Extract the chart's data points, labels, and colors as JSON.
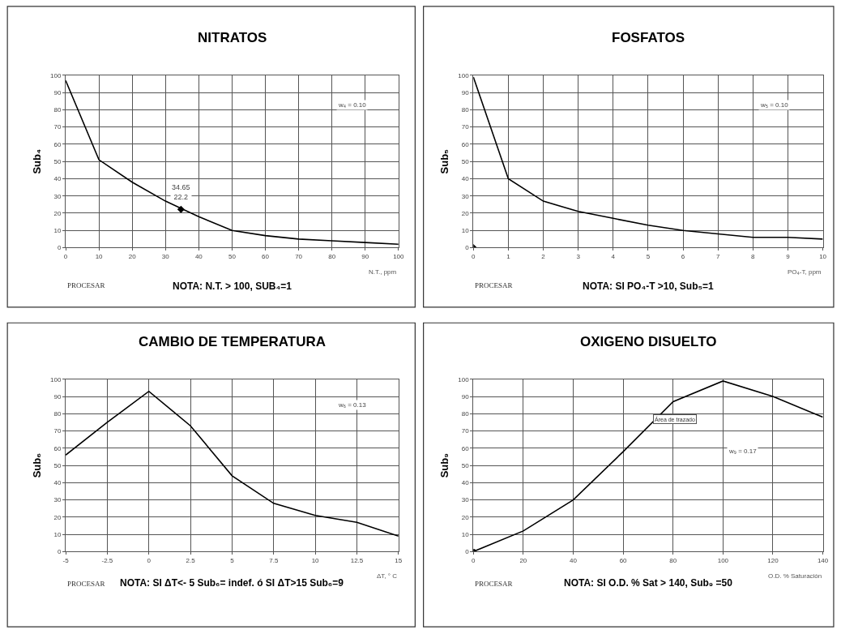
{
  "chart_data": [
    {
      "type": "line",
      "title": "NITRATOS",
      "ylabel": "Sub₄",
      "xlabel": "N.T., ppm",
      "xlim": [
        0,
        100
      ],
      "xticks": [
        0,
        10,
        20,
        30,
        40,
        50,
        60,
        70,
        80,
        90,
        100
      ],
      "ylim": [
        0,
        100
      ],
      "yticks": [
        0,
        10,
        20,
        30,
        40,
        50,
        60,
        70,
        80,
        90,
        100
      ],
      "grid": true,
      "marker": "none",
      "line_style": "solid",
      "series": [
        {
          "color": "#000000",
          "x": [
            0,
            10,
            20,
            30,
            40,
            50,
            60,
            70,
            80,
            90,
            100
          ],
          "values": [
            97,
            51,
            38,
            27,
            18,
            10,
            7,
            5,
            4,
            3,
            2
          ]
        },
        {
          "type": "scatter",
          "marker": "diamond",
          "color": "#000000",
          "x": [
            34.65
          ],
          "values": [
            22.2
          ]
        }
      ],
      "annotations": [
        "w₄ = 0.10",
        "PROCESAR",
        "NOTA: N.T. > 100, SUB₄=1",
        {
          "text": "34.65\n22.2",
          "x": 34.65,
          "y": 22.2
        }
      ]
    },
    {
      "type": "line",
      "title": "FOSFATOS",
      "ylabel": "Sub₅",
      "xlabel": "PO₄-T, ppm",
      "xlim": [
        0,
        10
      ],
      "xticks": [
        0,
        1,
        2,
        3,
        4,
        5,
        6,
        7,
        8,
        9,
        10
      ],
      "ylim": [
        0,
        100
      ],
      "yticks": [
        0,
        10,
        20,
        30,
        40,
        50,
        60,
        70,
        80,
        90,
        100
      ],
      "grid": true,
      "marker": "none",
      "line_style": "solid",
      "series": [
        {
          "color": "#000000",
          "x": [
            0,
            1,
            2,
            3,
            4,
            5,
            6,
            7,
            8,
            9,
            10
          ],
          "values": [
            99,
            40,
            27,
            21,
            17,
            13,
            10,
            8,
            6,
            6,
            5
          ]
        },
        {
          "type": "scatter",
          "marker": "diamond",
          "color": "#000000",
          "x": [
            0
          ],
          "values": [
            0
          ]
        }
      ],
      "annotations": [
        "w₅ = 0.10",
        "PROCESAR",
        "NOTA: SI PO₄-T >10, Sub₅=1"
      ]
    },
    {
      "type": "line",
      "title": "CAMBIO DE TEMPERATURA",
      "ylabel": "Sub₆",
      "xlabel": "ΔT, ° C",
      "xlim": [
        -5,
        15
      ],
      "xticks": [
        -5,
        -2.5,
        0,
        2.5,
        5,
        7.5,
        10,
        12.5,
        15
      ],
      "ylim": [
        0,
        100
      ],
      "yticks": [
        0,
        10,
        20,
        30,
        40,
        50,
        60,
        70,
        80,
        90,
        100
      ],
      "grid": true,
      "marker": "none",
      "line_style": "solid",
      "series": [
        {
          "color": "#000000",
          "x": [
            -5,
            -2.5,
            0,
            2.5,
            5,
            7.5,
            10,
            12.5,
            15
          ],
          "values": [
            56,
            75,
            93,
            73,
            44,
            28,
            21,
            17,
            9
          ]
        }
      ],
      "annotations": [
        "w₆ = 0.13",
        "PROCESAR",
        "NOTA: SI ΔT<- 5 Sub₆= indef. ó SI ΔT>15 Sub₆=9"
      ]
    },
    {
      "type": "line",
      "title": "OXIGENO DISUELTO",
      "ylabel": "Sub₉",
      "xlabel": "O.D. % Saturación",
      "xlim": [
        0,
        140
      ],
      "xticks": [
        0,
        20,
        40,
        60,
        80,
        100,
        120,
        140
      ],
      "ylim": [
        0,
        100
      ],
      "yticks": [
        0,
        10,
        20,
        30,
        40,
        50,
        60,
        70,
        80,
        90,
        100
      ],
      "grid": true,
      "marker": "none",
      "line_style": "solid",
      "series": [
        {
          "color": "#000000",
          "x": [
            0,
            20,
            40,
            60,
            80,
            100,
            120,
            140
          ],
          "values": [
            0,
            12,
            30,
            58,
            87,
            99,
            90,
            78
          ]
        },
        {
          "type": "scatter",
          "marker": "circle",
          "color": "#000000",
          "x": [
            0
          ],
          "values": [
            0
          ]
        }
      ],
      "annotations": [
        "w₉ = 0.17",
        "PROCESAR",
        "NOTA: SI O.D. % Sat > 140, Sub₉ =50",
        "Área de trazado"
      ]
    }
  ]
}
